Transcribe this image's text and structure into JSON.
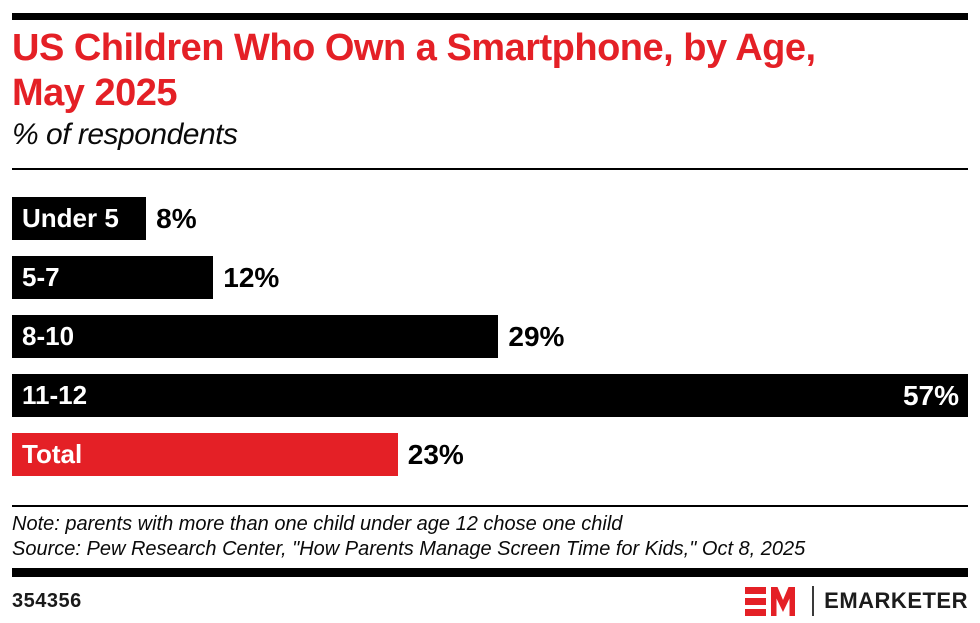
{
  "theme": {
    "accent": "#E42026",
    "bar_black": "#000000",
    "background": "#FFFFFF"
  },
  "header": {
    "title_line1": "US Children Who Own a Smartphone, by Age,",
    "title_line2": "May 2025",
    "subtitle": "% of respondents"
  },
  "chart_data": {
    "type": "bar",
    "orientation": "horizontal",
    "title": "US Children Who Own a Smartphone, by Age, May 2025",
    "xlabel": "% of respondents",
    "ylabel": "",
    "xlim": [
      0,
      57
    ],
    "grid": false,
    "legend": false,
    "categories": [
      "Under 5",
      "5-7",
      "8-10",
      "11-12",
      "Total"
    ],
    "values": [
      8,
      12,
      29,
      57,
      23
    ],
    "value_labels": [
      "8%",
      "12%",
      "29%",
      "57%",
      "23%"
    ],
    "bar_colors": [
      "#000000",
      "#000000",
      "#000000",
      "#000000",
      "#E42026"
    ],
    "value_label_positions": [
      "outside",
      "outside",
      "outside",
      "inside",
      "outside"
    ]
  },
  "footnote": {
    "note": "Note: parents with more than one child under age 12 chose one child",
    "source": "Source: Pew Research Center, \"How Parents Manage Screen Time for Kids,\" Oct 8, 2025"
  },
  "footer": {
    "chart_id": "354356",
    "brand": "EMARKETER",
    "logo": "em-monogram-icon"
  }
}
